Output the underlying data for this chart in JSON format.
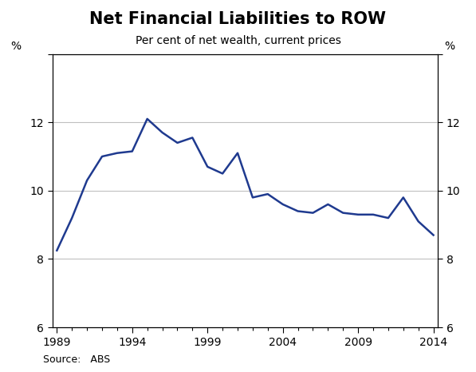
{
  "title": "Net Financial Liabilities to ROW",
  "subtitle": "Per cent of net wealth, current prices",
  "source": "Source:   ABS",
  "ylim": [
    6,
    14
  ],
  "yticks": [
    6,
    8,
    10,
    12,
    14
  ],
  "ytick_labels": [
    "6",
    "8",
    "10",
    "12",
    ""
  ],
  "xlim": [
    1989,
    2014
  ],
  "xticks": [
    1989,
    1994,
    1999,
    2004,
    2009,
    2014
  ],
  "line_color": "#1f3a8f",
  "line_width": 1.8,
  "years": [
    1989,
    1990,
    1991,
    1992,
    1993,
    1994,
    1995,
    1996,
    1997,
    1998,
    1999,
    2000,
    2001,
    2002,
    2003,
    2004,
    2005,
    2006,
    2007,
    2008,
    2009,
    2010,
    2011,
    2012,
    2013,
    2014
  ],
  "values": [
    8.25,
    9.2,
    10.3,
    11.0,
    11.1,
    11.15,
    12.1,
    11.7,
    11.4,
    11.55,
    10.7,
    10.5,
    11.1,
    9.8,
    9.9,
    9.6,
    9.4,
    9.35,
    9.6,
    9.35,
    9.3,
    9.3,
    9.2,
    9.8,
    9.1,
    8.7
  ],
  "grid_color": "#c0c0c0",
  "grid_linewidth": 0.8,
  "background_color": "#ffffff",
  "title_fontsize": 15,
  "subtitle_fontsize": 10,
  "tick_fontsize": 10,
  "source_fontsize": 9,
  "pct_fontsize": 10
}
